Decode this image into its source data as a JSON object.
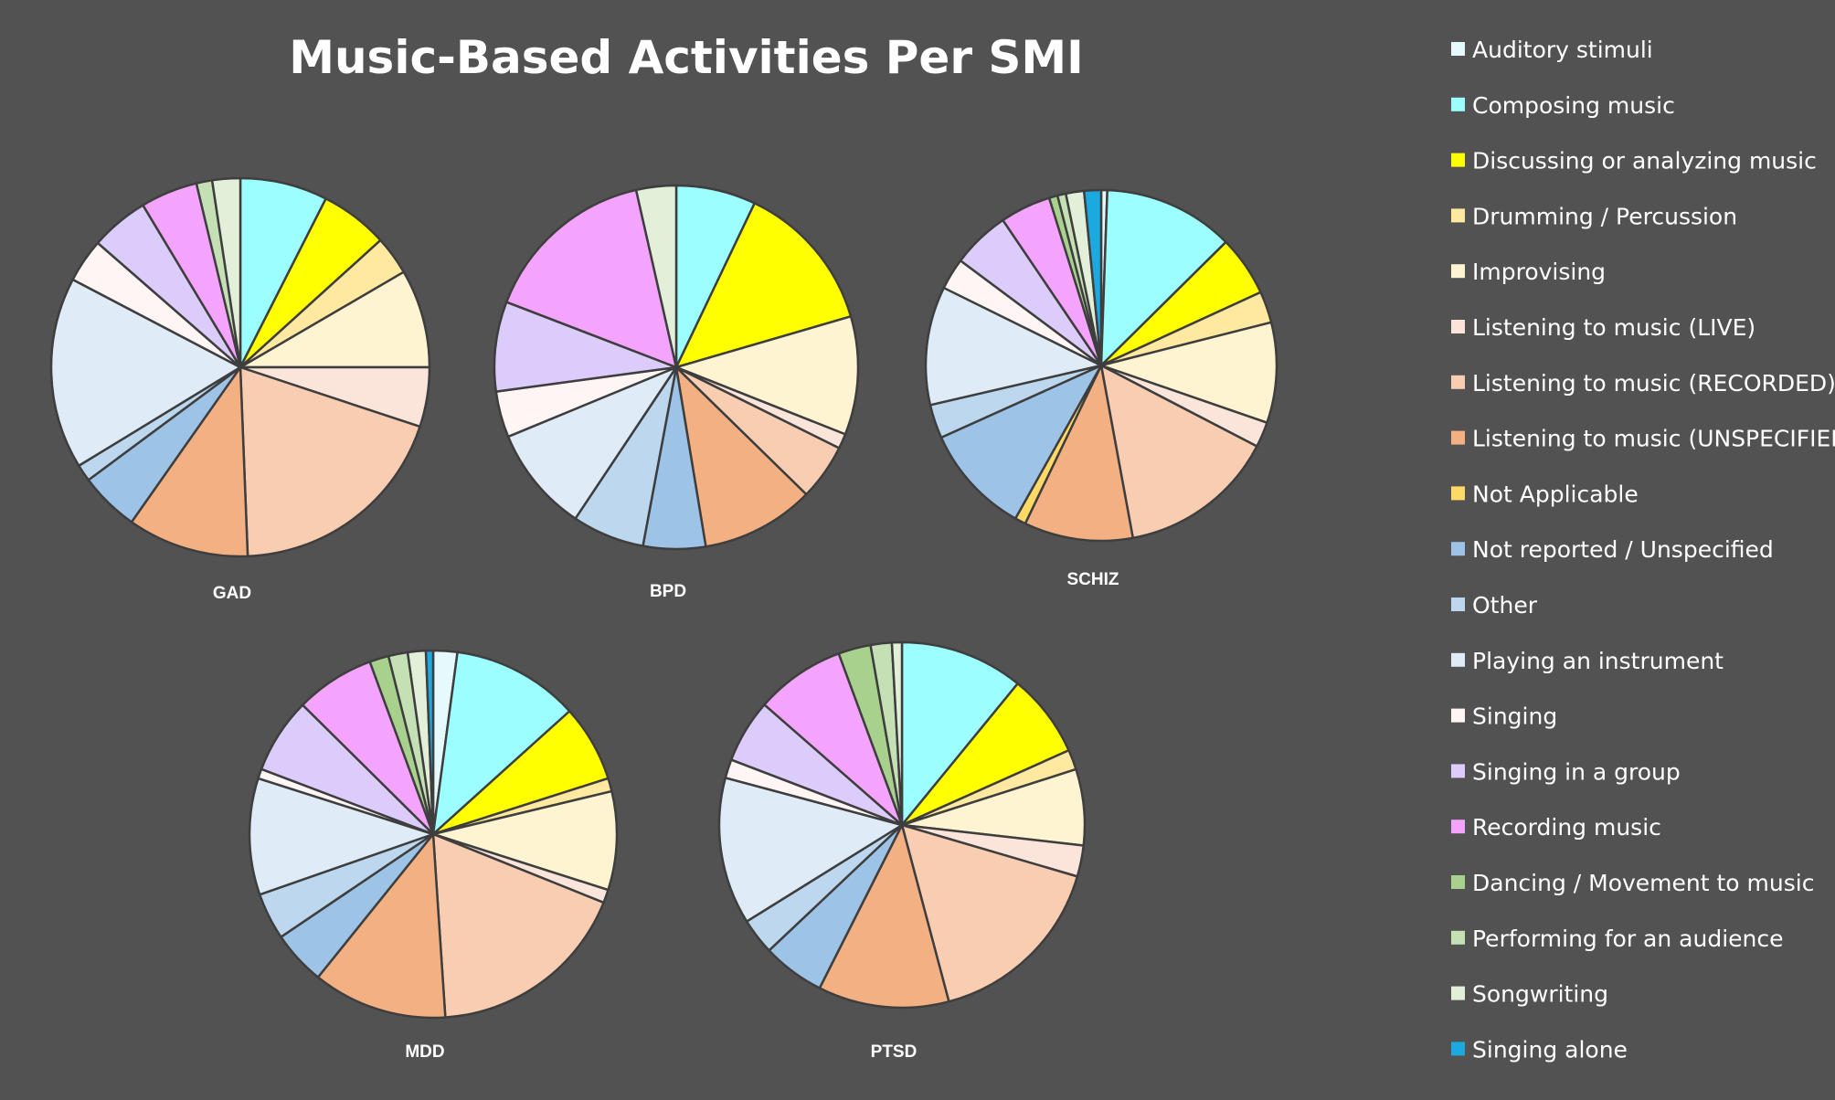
{
  "chart_data": {
    "type": "pie",
    "title": "Music-Based Activities Per SMI",
    "legend_position": "right",
    "categories": [
      "Auditory stimuli",
      "Composing music",
      "Discussing or analyzing music",
      "Drumming / Percussion",
      "Improvising",
      "Listening to music (LIVE)",
      "Listening to music (RECORDED)",
      "Listening to music (UNSPECIFIED)",
      "Not Applicable",
      "Not reported / Unspecified",
      "Other",
      "Playing an instrument",
      "Singing",
      "Singing in a group",
      "Recording music",
      "Dancing / Movement to music",
      "Performing for an audience",
      "Songwriting",
      "Singing alone"
    ],
    "colors": [
      "#e6fafd",
      "#9cfefe",
      "#ffff00",
      "#ffe9a0",
      "#fff4d2",
      "#fbe5da",
      "#f9cdb1",
      "#f3b183",
      "#ffd966",
      "#9dc3e6",
      "#bdd7ee",
      "#dfebf7",
      "#fff5f5",
      "#dcccfb",
      "#f4a4fd",
      "#a9d18e",
      "#c5e0b4",
      "#e2f0d9",
      "#1ca9e0"
    ],
    "pies": [
      {
        "label": "GAD",
        "values": [
          0,
          7.2,
          5.6,
          3.2,
          8.1,
          4.9,
          18.6,
          10.0,
          0,
          4.9,
          1.4,
          15.8,
          3.6,
          4.8,
          4.7,
          0,
          1.3,
          2.3,
          0
        ]
      },
      {
        "label": "BPD",
        "values": [
          0,
          6.4,
          12.1,
          0,
          9.5,
          1.2,
          4.5,
          9.1,
          0,
          5.0,
          5.8,
          8.5,
          3.7,
          7.2,
          14.1,
          0,
          0,
          3.2,
          0
        ]
      },
      {
        "label": "SCHIZ",
        "values": [
          0.5,
          10.8,
          5.0,
          2.6,
          8.3,
          2.1,
          13.0,
          9.0,
          0.9,
          9.1,
          2.8,
          9.8,
          2.6,
          4.8,
          4.2,
          0.7,
          0.7,
          1.5,
          1.4
        ]
      },
      {
        "label": "MDD",
        "values": [
          2.0,
          10.6,
          6.4,
          1.1,
          8.2,
          1.1,
          16.9,
          11.2,
          0,
          4.5,
          3.9,
          9.7,
          0.8,
          6.3,
          6.6,
          1.6,
          1.6,
          1.5,
          0.6
        ]
      },
      {
        "label": "PTSD",
        "values": [
          0,
          9.9,
          6.7,
          1.6,
          6.1,
          2.5,
          14.8,
          10.5,
          0,
          5.0,
          2.9,
          11.8,
          1.5,
          5.1,
          7.2,
          2.6,
          1.7,
          0.8,
          0
        ]
      }
    ]
  }
}
